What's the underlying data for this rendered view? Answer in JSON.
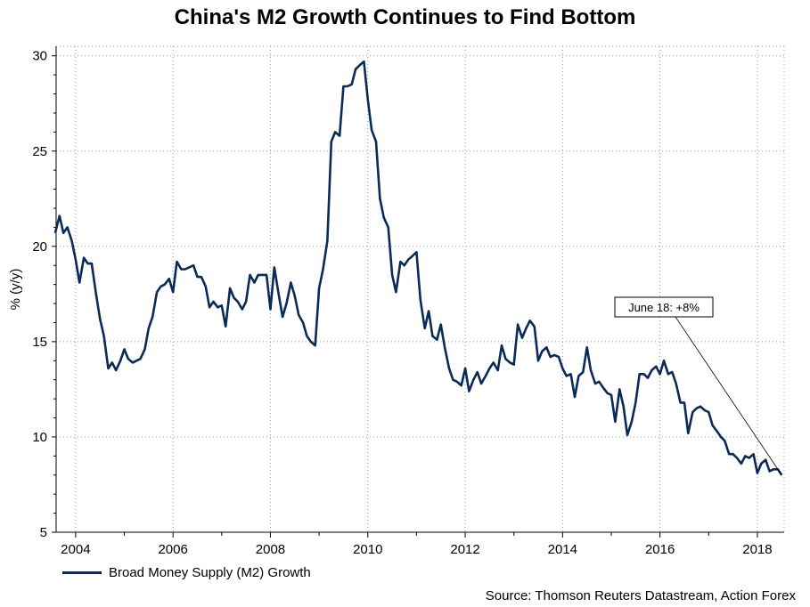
{
  "chart_data": {
    "type": "line",
    "title": "China's M2 Growth Continues to Find Bottom",
    "ylabel": "% (y/y)",
    "xlabel": "",
    "ylim": [
      5,
      30.5
    ],
    "xlim": [
      2003.6,
      2018.55
    ],
    "yticks": [
      5,
      10,
      15,
      20,
      25,
      30
    ],
    "xticks": [
      2004,
      2006,
      2008,
      2010,
      2012,
      2014,
      2016,
      2018
    ],
    "grid": true,
    "legend_position": "bottom-left",
    "series": [
      {
        "name": "Broad Money Supply (M2) Growth",
        "color": "#0a2a5a",
        "points": [
          [
            2003.58,
            20.7
          ],
          [
            2003.67,
            21.6
          ],
          [
            2003.75,
            20.7
          ],
          [
            2003.83,
            21.0
          ],
          [
            2003.92,
            20.3
          ],
          [
            2004.0,
            19.3
          ],
          [
            2004.08,
            18.1
          ],
          [
            2004.17,
            19.4
          ],
          [
            2004.25,
            19.1
          ],
          [
            2004.33,
            19.1
          ],
          [
            2004.42,
            17.5
          ],
          [
            2004.5,
            16.2
          ],
          [
            2004.58,
            15.3
          ],
          [
            2004.67,
            13.6
          ],
          [
            2004.75,
            13.9
          ],
          [
            2004.83,
            13.5
          ],
          [
            2004.92,
            14.0
          ],
          [
            2005.0,
            14.6
          ],
          [
            2005.08,
            14.1
          ],
          [
            2005.17,
            13.9
          ],
          [
            2005.25,
            14.0
          ],
          [
            2005.33,
            14.1
          ],
          [
            2005.42,
            14.6
          ],
          [
            2005.5,
            15.7
          ],
          [
            2005.58,
            16.3
          ],
          [
            2005.67,
            17.6
          ],
          [
            2005.75,
            17.9
          ],
          [
            2005.83,
            18.0
          ],
          [
            2005.92,
            18.3
          ],
          [
            2006.0,
            17.6
          ],
          [
            2006.08,
            19.2
          ],
          [
            2006.17,
            18.8
          ],
          [
            2006.25,
            18.8
          ],
          [
            2006.33,
            18.9
          ],
          [
            2006.42,
            19.0
          ],
          [
            2006.5,
            18.4
          ],
          [
            2006.58,
            18.4
          ],
          [
            2006.67,
            17.9
          ],
          [
            2006.75,
            16.8
          ],
          [
            2006.83,
            17.1
          ],
          [
            2006.92,
            16.8
          ],
          [
            2007.0,
            16.9
          ],
          [
            2007.08,
            15.8
          ],
          [
            2007.17,
            17.8
          ],
          [
            2007.25,
            17.3
          ],
          [
            2007.33,
            17.1
          ],
          [
            2007.42,
            16.7
          ],
          [
            2007.5,
            17.1
          ],
          [
            2007.58,
            18.5
          ],
          [
            2007.67,
            18.1
          ],
          [
            2007.75,
            18.5
          ],
          [
            2007.83,
            18.5
          ],
          [
            2007.92,
            18.5
          ],
          [
            2008.0,
            16.7
          ],
          [
            2008.08,
            18.9
          ],
          [
            2008.17,
            17.5
          ],
          [
            2008.25,
            16.3
          ],
          [
            2008.33,
            17.0
          ],
          [
            2008.42,
            18.1
          ],
          [
            2008.5,
            17.4
          ],
          [
            2008.58,
            16.4
          ],
          [
            2008.67,
            16.0
          ],
          [
            2008.75,
            15.3
          ],
          [
            2008.83,
            15.0
          ],
          [
            2008.92,
            14.8
          ],
          [
            2009.0,
            17.8
          ],
          [
            2009.08,
            18.8
          ],
          [
            2009.17,
            20.3
          ],
          [
            2009.25,
            25.5
          ],
          [
            2009.33,
            26.0
          ],
          [
            2009.42,
            25.8
          ],
          [
            2009.5,
            28.4
          ],
          [
            2009.58,
            28.4
          ],
          [
            2009.67,
            28.5
          ],
          [
            2009.75,
            29.3
          ],
          [
            2009.83,
            29.5
          ],
          [
            2009.92,
            29.7
          ],
          [
            2010.0,
            27.7
          ],
          [
            2010.08,
            26.1
          ],
          [
            2010.17,
            25.5
          ],
          [
            2010.25,
            22.5
          ],
          [
            2010.33,
            21.5
          ],
          [
            2010.42,
            21.0
          ],
          [
            2010.5,
            18.5
          ],
          [
            2010.58,
            17.6
          ],
          [
            2010.67,
            19.2
          ],
          [
            2010.75,
            19.0
          ],
          [
            2010.83,
            19.3
          ],
          [
            2010.92,
            19.5
          ],
          [
            2011.0,
            19.7
          ],
          [
            2011.08,
            17.2
          ],
          [
            2011.17,
            15.7
          ],
          [
            2011.25,
            16.6
          ],
          [
            2011.33,
            15.3
          ],
          [
            2011.42,
            15.1
          ],
          [
            2011.5,
            15.9
          ],
          [
            2011.58,
            14.7
          ],
          [
            2011.67,
            13.6
          ],
          [
            2011.75,
            13.0
          ],
          [
            2011.83,
            12.9
          ],
          [
            2011.92,
            12.7
          ],
          [
            2012.0,
            13.6
          ],
          [
            2012.08,
            12.4
          ],
          [
            2012.17,
            13.0
          ],
          [
            2012.25,
            13.4
          ],
          [
            2012.33,
            12.8
          ],
          [
            2012.42,
            13.2
          ],
          [
            2012.5,
            13.6
          ],
          [
            2012.58,
            13.9
          ],
          [
            2012.67,
            13.5
          ],
          [
            2012.75,
            14.8
          ],
          [
            2012.83,
            14.1
          ],
          [
            2012.92,
            13.9
          ],
          [
            2013.0,
            13.8
          ],
          [
            2013.08,
            15.9
          ],
          [
            2013.17,
            15.2
          ],
          [
            2013.25,
            15.7
          ],
          [
            2013.33,
            16.1
          ],
          [
            2013.42,
            15.8
          ],
          [
            2013.5,
            14.0
          ],
          [
            2013.58,
            14.5
          ],
          [
            2013.67,
            14.7
          ],
          [
            2013.75,
            14.2
          ],
          [
            2013.83,
            14.3
          ],
          [
            2013.92,
            14.2
          ],
          [
            2014.0,
            13.6
          ],
          [
            2014.08,
            13.2
          ],
          [
            2014.17,
            13.3
          ],
          [
            2014.25,
            12.1
          ],
          [
            2014.33,
            13.2
          ],
          [
            2014.42,
            13.4
          ],
          [
            2014.5,
            14.7
          ],
          [
            2014.58,
            13.5
          ],
          [
            2014.67,
            12.8
          ],
          [
            2014.75,
            12.9
          ],
          [
            2014.83,
            12.6
          ],
          [
            2014.92,
            12.3
          ],
          [
            2015.0,
            12.2
          ],
          [
            2015.08,
            10.8
          ],
          [
            2015.17,
            12.5
          ],
          [
            2015.25,
            11.6
          ],
          [
            2015.33,
            10.1
          ],
          [
            2015.42,
            10.8
          ],
          [
            2015.5,
            11.8
          ],
          [
            2015.58,
            13.3
          ],
          [
            2015.67,
            13.3
          ],
          [
            2015.75,
            13.1
          ],
          [
            2015.83,
            13.5
          ],
          [
            2015.92,
            13.7
          ],
          [
            2016.0,
            13.3
          ],
          [
            2016.08,
            14.0
          ],
          [
            2016.17,
            13.3
          ],
          [
            2016.25,
            13.4
          ],
          [
            2016.33,
            12.8
          ],
          [
            2016.42,
            11.8
          ],
          [
            2016.5,
            11.8
          ],
          [
            2016.58,
            10.2
          ],
          [
            2016.67,
            11.3
          ],
          [
            2016.75,
            11.5
          ],
          [
            2016.83,
            11.6
          ],
          [
            2016.92,
            11.4
          ],
          [
            2017.0,
            11.3
          ],
          [
            2017.08,
            10.6
          ],
          [
            2017.17,
            10.3
          ],
          [
            2017.25,
            10.0
          ],
          [
            2017.33,
            9.8
          ],
          [
            2017.42,
            9.1
          ],
          [
            2017.5,
            9.1
          ],
          [
            2017.58,
            8.9
          ],
          [
            2017.67,
            8.6
          ],
          [
            2017.75,
            9.0
          ],
          [
            2017.83,
            8.9
          ],
          [
            2017.92,
            9.1
          ],
          [
            2018.0,
            8.1
          ],
          [
            2018.08,
            8.6
          ],
          [
            2018.17,
            8.8
          ],
          [
            2018.25,
            8.2
          ],
          [
            2018.33,
            8.3
          ],
          [
            2018.42,
            8.3
          ],
          [
            2018.5,
            8.0
          ]
        ]
      }
    ],
    "annotations": [
      {
        "text": "June 18: +8%",
        "points_to": [
          2018.5,
          8.0
        ]
      }
    ]
  },
  "legend": {
    "label": "Broad Money Supply (M2) Growth"
  },
  "source": "Source: Thomson Reuters Datastream, Action Forex"
}
